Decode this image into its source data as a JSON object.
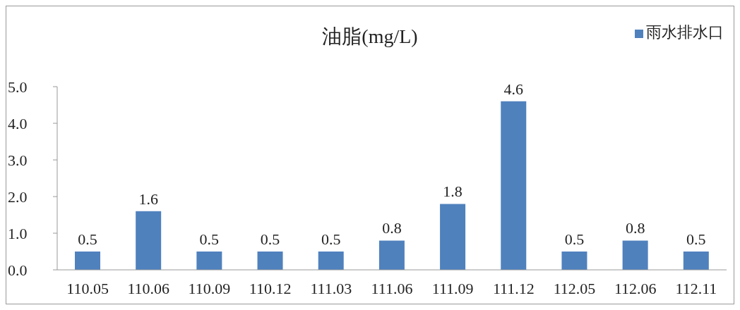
{
  "chart_data": {
    "type": "bar",
    "title": "油脂(mg/L)",
    "categories": [
      "110.05",
      "110.06",
      "110.09",
      "110.12",
      "111.03",
      "111.06",
      "111.09",
      "111.12",
      "112.05",
      "112.06",
      "112.11"
    ],
    "series": [
      {
        "name": "雨水排水口",
        "color": "#4f81bd",
        "values": [
          0.5,
          1.6,
          0.5,
          0.5,
          0.5,
          0.8,
          1.8,
          4.6,
          0.5,
          0.8,
          0.5
        ]
      }
    ],
    "ylim": [
      0,
      5
    ],
    "yticks": [
      {
        "value": 0,
        "label": "0.0"
      },
      {
        "value": 1,
        "label": "1.0"
      },
      {
        "value": 2,
        "label": "2.0"
      },
      {
        "value": 3,
        "label": "3.0"
      },
      {
        "value": 4,
        "label": "4.0"
      },
      {
        "value": 5,
        "label": "5.0"
      }
    ],
    "grid": false,
    "legend": "top right",
    "data_labels": true
  }
}
